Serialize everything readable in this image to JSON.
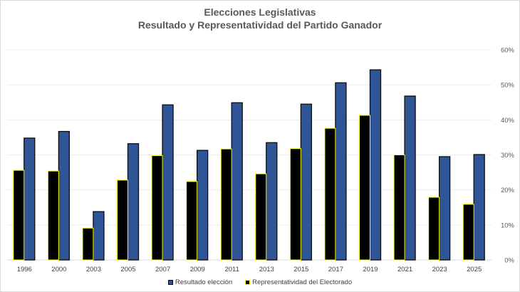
{
  "chart_data": {
    "type": "bar",
    "title": "Elecciones Legislativas",
    "subtitle": "Resultado y Representatividad del Partido Ganador",
    "xlabel": "",
    "ylabel": "",
    "categories": [
      "1996",
      "2000",
      "2003",
      "2005",
      "2007",
      "2009",
      "2011",
      "2013",
      "2015",
      "2017",
      "2019",
      "2021",
      "2023",
      "2025"
    ],
    "series": [
      {
        "name": "Representatividad del Electorado",
        "color": "#000000",
        "edge": "#ffff00",
        "values": [
          25.6,
          25.4,
          9.1,
          22.8,
          29.8,
          22.4,
          31.7,
          24.6,
          31.8,
          37.6,
          41.3,
          30.0,
          17.9,
          15.9
        ]
      },
      {
        "name": "Resultado elección",
        "color": "#2f5597",
        "edge": "#0d0d0d",
        "values": [
          34.8,
          36.7,
          13.8,
          33.2,
          44.3,
          31.3,
          44.9,
          33.5,
          44.5,
          50.6,
          54.3,
          46.8,
          29.5,
          30.1
        ]
      }
    ],
    "ylim": [
      0,
      60
    ],
    "yticks": [
      0,
      10,
      20,
      30,
      40,
      50,
      60
    ],
    "ytick_labels": [
      "0%",
      "10%",
      "20%",
      "30%",
      "40%",
      "50%",
      "60%"
    ],
    "y_axis_side": "right",
    "grid": true,
    "legend": {
      "placement": "bottom",
      "entries": [
        "Resultado elección",
        "Representatividad del Electorado"
      ]
    }
  }
}
